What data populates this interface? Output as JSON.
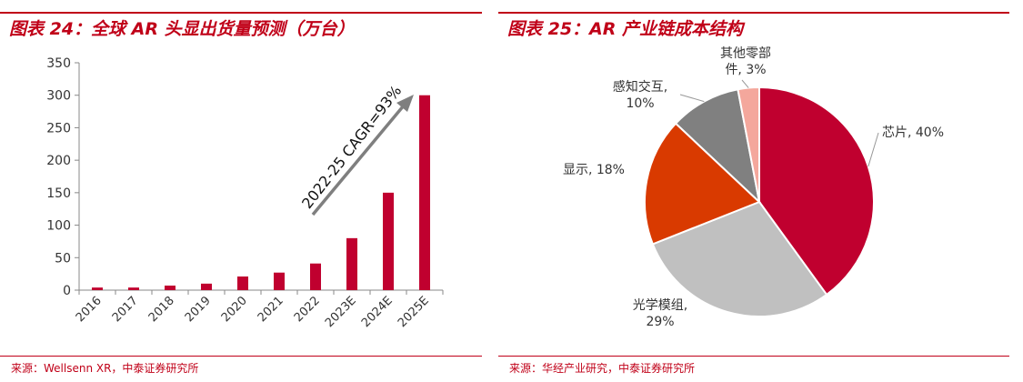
{
  "left": {
    "title": "图表 24：全球 AR 头显出货量预测（万台）",
    "source": "来源：Wellsenn XR，中泰证券研究所"
  },
  "right": {
    "title": "图表 25：AR 产业链成本结构",
    "source": "来源：华经产业研究，中泰证券研究所"
  },
  "colors": {
    "accent": "#c00018",
    "bar": "#c0002f",
    "arrow": "#7f7f7f",
    "axis": "#888888",
    "slice_chip": "#c0002f",
    "slice_optics": "#c0c0c0",
    "slice_display": "#d93a00",
    "slice_interaction": "#808080",
    "slice_other": "#f4a79c"
  },
  "chart_data": [
    {
      "type": "bar",
      "categories": [
        "2016",
        "2017",
        "2018",
        "2019",
        "2020",
        "2021",
        "2022",
        "2023E",
        "2024E",
        "2025E"
      ],
      "values": [
        4,
        4,
        7,
        10,
        21,
        27,
        41,
        80,
        150,
        300
      ],
      "ylim": [
        0,
        350
      ],
      "yticks": [
        "0",
        "50",
        "100",
        "150",
        "200",
        "250",
        "300",
        "350"
      ],
      "annotation": "2022-25 CAGR=93%",
      "grid": false,
      "legend": "none"
    },
    {
      "type": "pie",
      "labels": [
        "芯片",
        "光学模组",
        "显示",
        "感知交互",
        "其他零部件"
      ],
      "values": [
        40,
        29,
        18,
        10,
        3
      ],
      "data_labels": [
        [
          "芯片, 40%"
        ],
        [
          "光学模组,",
          "29%"
        ],
        [
          "显示, 18%"
        ],
        [
          "感知交互,",
          "10%"
        ],
        [
          "其他零部",
          "件, 3%"
        ]
      ],
      "legend": "none"
    }
  ]
}
